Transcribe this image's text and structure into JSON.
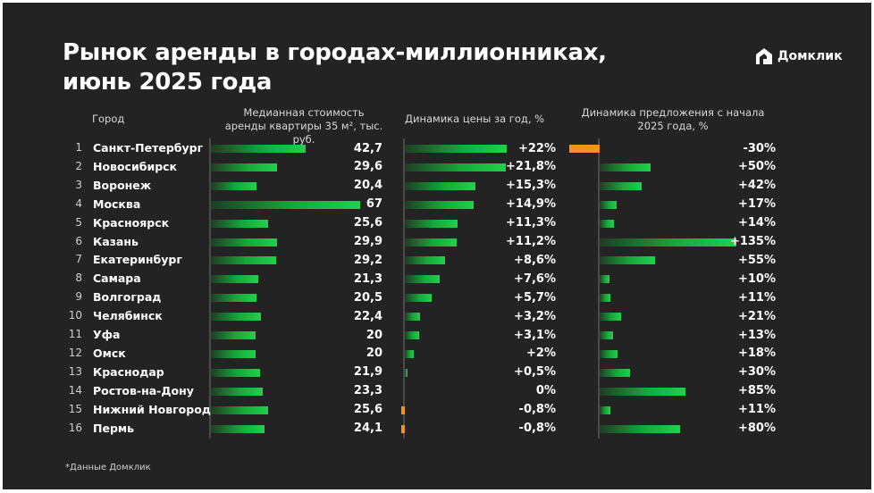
{
  "title": "Рынок аренды в городах-миллионниках, июнь 2025 года",
  "logo": {
    "text": "Домклик",
    "icon": "house-logo-icon"
  },
  "footnote": "*Данные Домклик",
  "colors": {
    "background": "#232323",
    "positive": "#1fd14c",
    "negative": "#f39220"
  },
  "chart_data": {
    "type": "bar",
    "orientation": "horizontal",
    "column_header": "Город",
    "ranks": [
      "1",
      "2",
      "3",
      "4",
      "5",
      "6",
      "7",
      "8",
      "9",
      "10",
      "11",
      "12",
      "13",
      "14",
      "15",
      "16"
    ],
    "categories": [
      "Санкт-Петербург",
      "Новосибирск",
      "Воронеж",
      "Москва",
      "Красноярск",
      "Казань",
      "Екатеринбург",
      "Самара",
      "Волгоград",
      "Челябинск",
      "Уфа",
      "Омск",
      "Краснодар",
      "Ростов-на-Дону",
      "Нижний Новгород",
      "Пермь"
    ],
    "series": [
      {
        "name": "Медианная стоимость аренды квартиры 35 м², тыс. руб.",
        "values": [
          42.7,
          29.6,
          20.4,
          67,
          25.6,
          29.9,
          29.2,
          21.3,
          20.5,
          22.4,
          20,
          20,
          21.9,
          23.3,
          25.6,
          24.1
        ],
        "labels": [
          "42,7",
          "29,6",
          "20,4",
          "67",
          "25,6",
          "29,9",
          "29,2",
          "21,3",
          "20,5",
          "22,4",
          "20",
          "20",
          "21,9",
          "23,3",
          "25,6",
          "24,1"
        ]
      },
      {
        "name": "Динамика цены за год, %",
        "values": [
          22,
          21.8,
          15.3,
          14.9,
          11.3,
          11.2,
          8.6,
          7.6,
          5.7,
          3.2,
          3.1,
          2,
          0.5,
          0,
          -0.8,
          -0.8
        ],
        "labels": [
          "+22%",
          "+21,8%",
          "+15,3%",
          "+14,9%",
          "+11,3%",
          "+11,2%",
          "+8,6%",
          "+7,6%",
          "+5,7%",
          "+3,2%",
          "+3,1%",
          "+2%",
          "+0,5%",
          "0%",
          "-0,8%",
          "-0,8%"
        ]
      },
      {
        "name": "Динамика предложения с начала 2025 года, %",
        "values": [
          -30,
          50,
          42,
          17,
          14,
          135,
          55,
          10,
          11,
          21,
          13,
          18,
          30,
          85,
          11,
          80
        ],
        "labels": [
          "-30%",
          "+50%",
          "+42%",
          "+17%",
          "+14%",
          "+135%",
          "+55%",
          "+10%",
          "+11%",
          "+21%",
          "+13%",
          "+18%",
          "+30%",
          "+85%",
          "+11%",
          "+80%"
        ]
      }
    ]
  }
}
